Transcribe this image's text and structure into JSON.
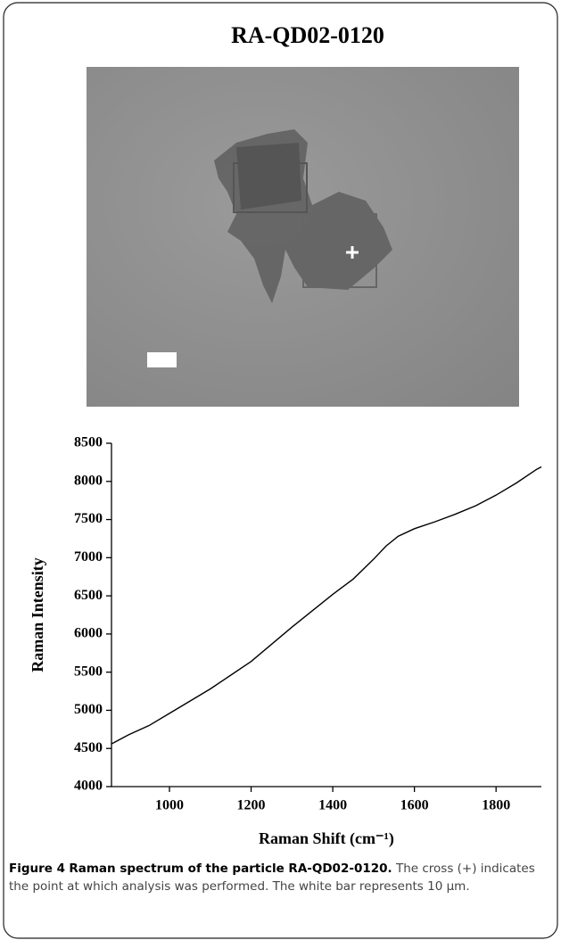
{
  "title": "RA-QD02-0120",
  "chart_data": {
    "type": "line",
    "y_label": "Raman Intensity",
    "x_label": "Raman Shift (cm⁻¹)",
    "x": [
      858,
      900,
      950,
      1000,
      1100,
      1200,
      1300,
      1400,
      1450,
      1500,
      1530,
      1560,
      1600,
      1650,
      1700,
      1750,
      1800,
      1850,
      1900,
      1911
    ],
    "series": [
      {
        "color": "#000000",
        "values": [
          4560,
          4680,
          4800,
          4960,
          5280,
          5640,
          6090,
          6520,
          6720,
          6980,
          7150,
          7280,
          7380,
          7470,
          7570,
          7680,
          7820,
          7980,
          8160,
          8190
        ]
      }
    ],
    "xlim": [
      858,
      1911
    ],
    "xticks": [
      1000,
      1200,
      1400,
      1600,
      1800
    ],
    "ylim": [
      4000,
      8500
    ],
    "yticks": [
      4000,
      4500,
      5000,
      5500,
      6000,
      6500,
      7000,
      7500,
      8000,
      8500
    ]
  },
  "caption": {
    "label": "Figure 4",
    "title": "Raman spectrum of the particle RA-QD02-0120.",
    "text": "The cross (+) indicates the point at which analysis was performed. The white bar represents 10 μm."
  }
}
